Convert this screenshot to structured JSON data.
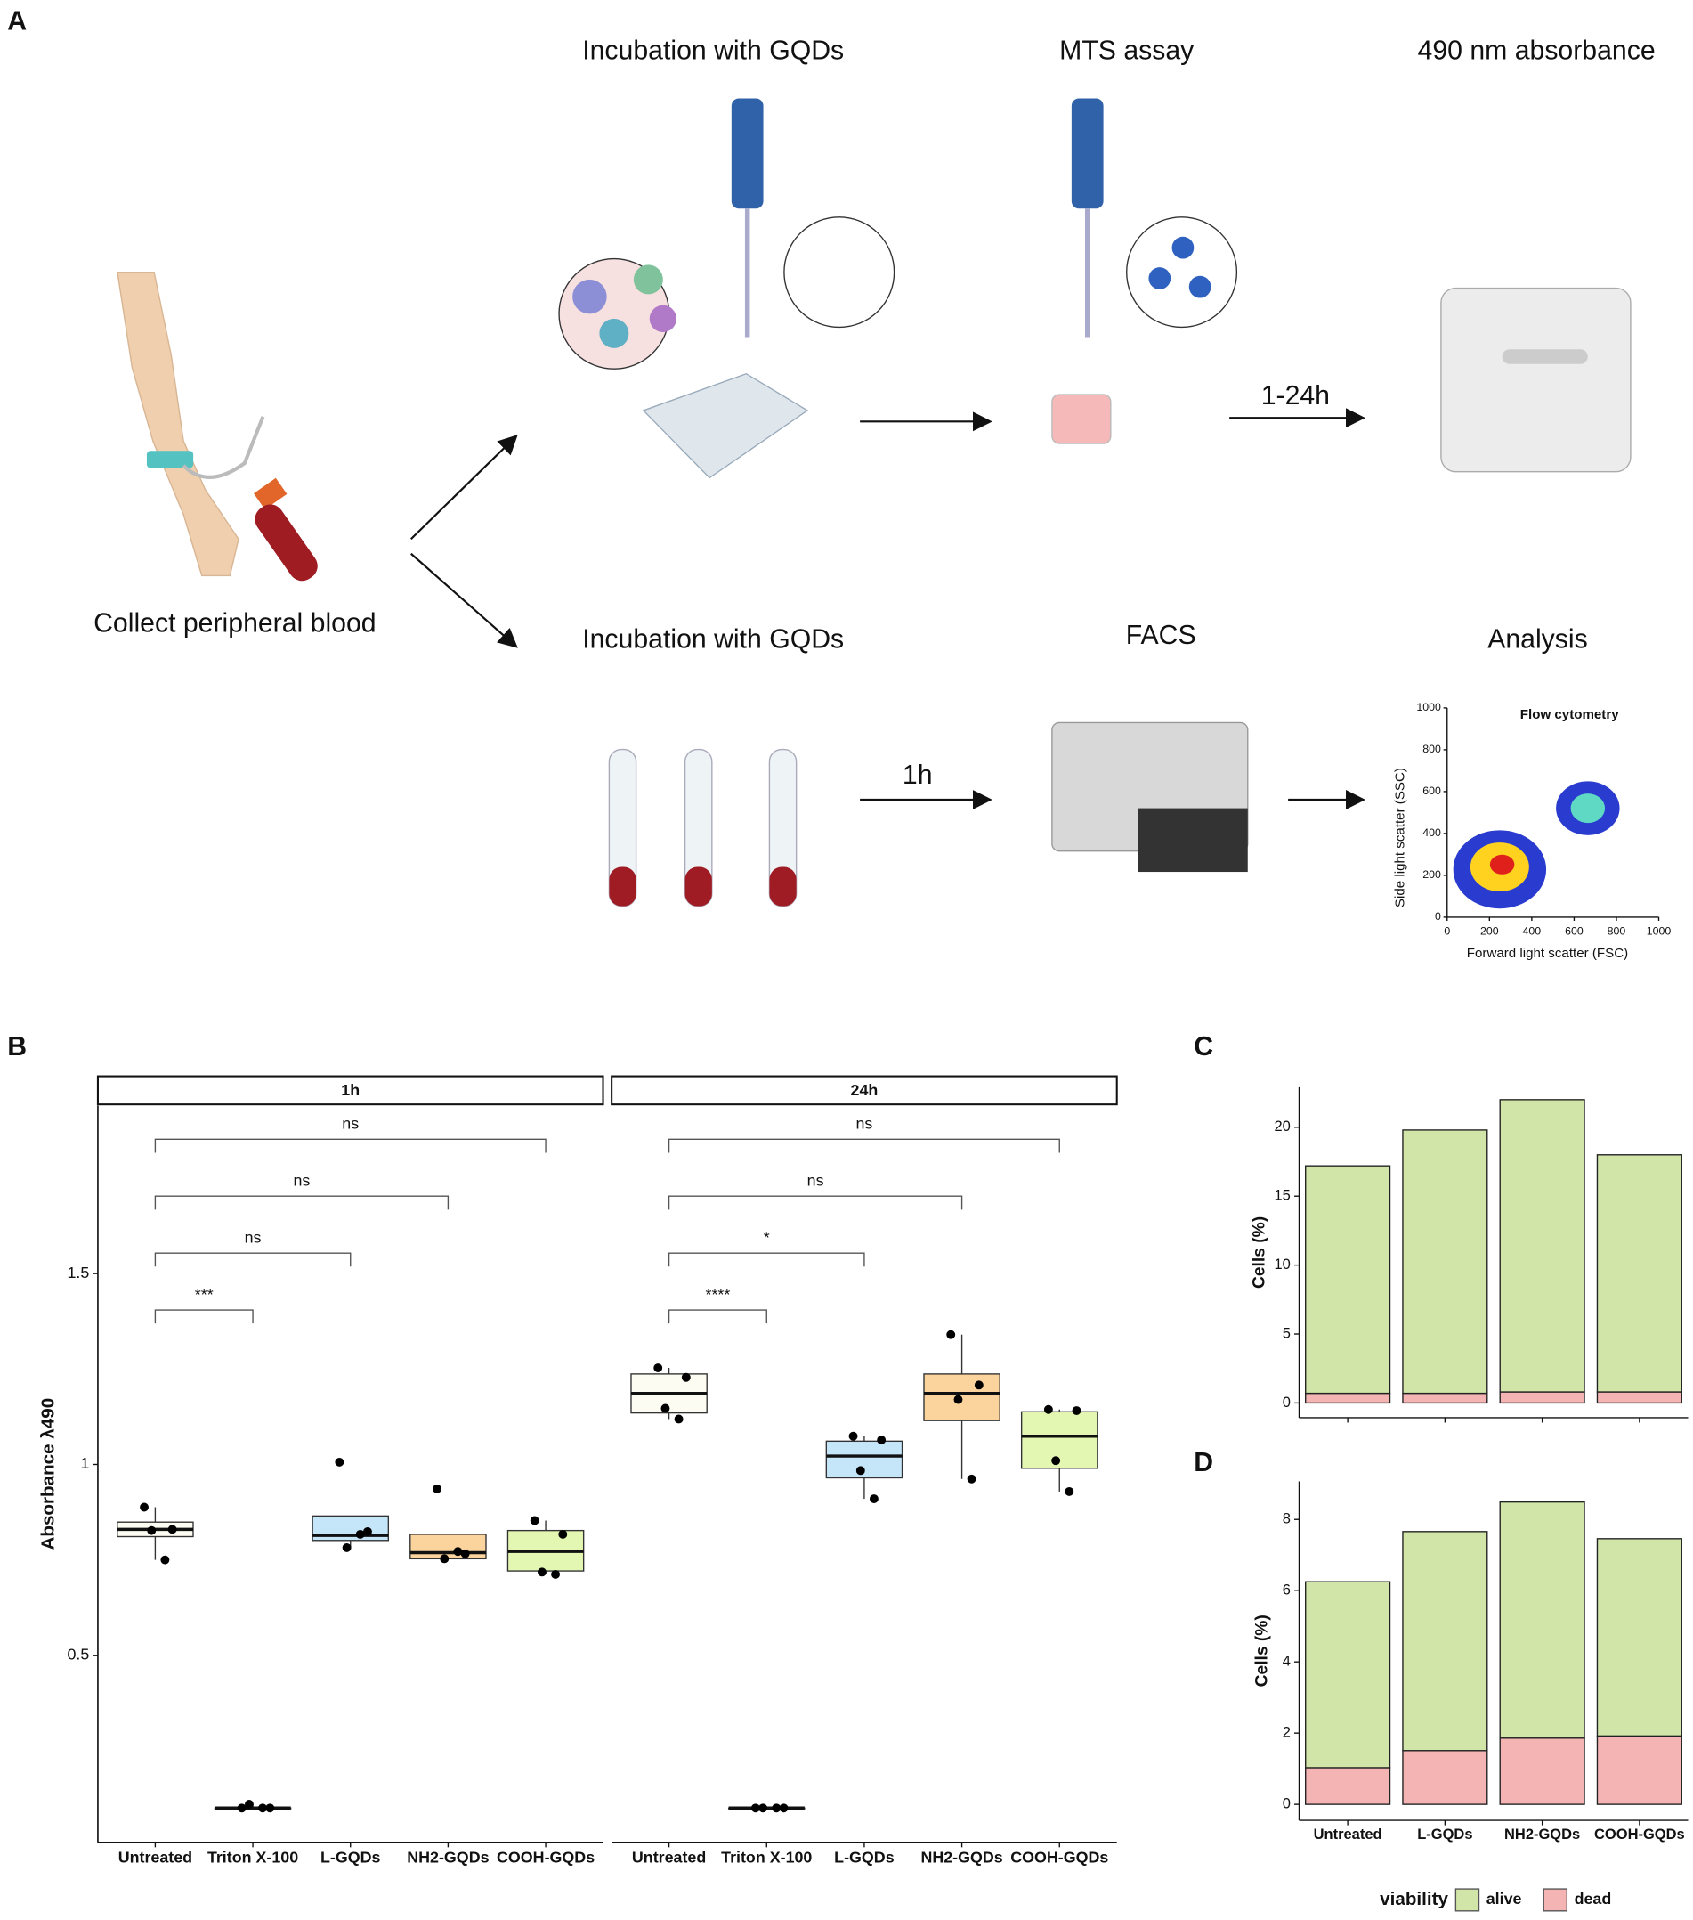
{
  "panel_labels": [
    "A",
    "B",
    "C",
    "D"
  ],
  "diagram": {
    "source": "Collect peripheral blood",
    "top_steps": [
      "Incubation with GQDs",
      "MTS assay",
      "490 nm absorbance"
    ],
    "bottom_steps": [
      "Incubation with GQDs",
      "FACS",
      "Analysis"
    ],
    "top_arrow_label": "1-24h",
    "bottom_arrow_label": "1h",
    "inset": {
      "title": "Flow cytometry",
      "xlabel": "Forward light scatter (FSC)",
      "ylabel": "Side light scatter (SSC)",
      "xlim": [
        0,
        1000
      ],
      "ylim": [
        0,
        1000
      ],
      "xticks": [
        0,
        200,
        400,
        600,
        800,
        1000
      ],
      "yticks": [
        0,
        200,
        400,
        600,
        800,
        1000
      ]
    }
  },
  "chart_data": [
    {
      "type": "box",
      "ylabel": "Absorbance λ490",
      "ylim": [
        0.01,
        1.94
      ],
      "yticks": [
        0.5,
        1.0,
        1.5
      ],
      "categories": [
        "Untreated",
        "Triton X-100",
        "L-GQDs",
        "NH2-GQDs",
        "COOH-GQDs"
      ],
      "colors": [
        "#fdfcf3",
        "#ffffff",
        "#c5e5f8",
        "#fbd39d",
        "#e3f7b2"
      ],
      "facets": [
        {
          "label": "1h",
          "boxes": [
            {
              "lower": 0.75,
              "q1": 0.811,
              "median": 0.83,
              "q3": 0.849,
              "upper": 0.888,
              "points": [
                0.888,
                0.83,
                0.827,
                0.75
              ]
            },
            {
              "lower": 0.1,
              "q1": 0.1,
              "median": 0.1,
              "q3": 0.1,
              "upper": 0.11,
              "points": [
                0.1,
                0.1,
                0.11,
                0.1
              ]
            },
            {
              "lower": 0.782,
              "q1": 0.801,
              "median": 0.814,
              "q3": 0.865,
              "upper": 0.865,
              "points": [
                1.006,
                0.824,
                0.782,
                0.817
              ]
            },
            {
              "lower": 0.753,
              "q1": 0.753,
              "median": 0.769,
              "q3": 0.817,
              "upper": 0.817,
              "points": [
                0.936,
                0.766,
                0.753,
                0.772
              ]
            },
            {
              "lower": 0.712,
              "q1": 0.721,
              "median": 0.772,
              "q3": 0.827,
              "upper": 0.853,
              "points": [
                0.853,
                0.817,
                0.718,
                0.712
              ]
            }
          ],
          "comparisons": [
            {
              "groups": [
                "Untreated",
                "Triton X-100"
              ],
              "label": "***"
            },
            {
              "groups": [
                "Untreated",
                "L-GQDs"
              ],
              "label": "ns"
            },
            {
              "groups": [
                "Untreated",
                "NH2-GQDs"
              ],
              "label": "ns"
            },
            {
              "groups": [
                "Untreated",
                "COOH-GQDs"
              ],
              "label": "ns"
            }
          ]
        },
        {
          "label": "24h",
          "boxes": [
            {
              "lower": 1.119,
              "q1": 1.135,
              "median": 1.186,
              "q3": 1.237,
              "upper": 1.253,
              "points": [
                1.253,
                1.228,
                1.147,
                1.119
              ]
            },
            {
              "lower": 0.1,
              "q1": 0.1,
              "median": 0.1,
              "q3": 0.1,
              "upper": 0.1,
              "points": [
                0.1,
                0.1,
                0.1,
                0.1
              ]
            },
            {
              "lower": 0.91,
              "q1": 0.965,
              "median": 1.022,
              "q3": 1.061,
              "upper": 1.074,
              "points": [
                1.074,
                1.064,
                0.984,
                0.91
              ]
            },
            {
              "lower": 0.962,
              "q1": 1.115,
              "median": 1.186,
              "q3": 1.237,
              "upper": 1.34,
              "points": [
                1.34,
                1.208,
                1.17,
                0.962
              ]
            },
            {
              "lower": 0.929,
              "q1": 0.99,
              "median": 1.074,
              "q3": 1.138,
              "upper": 1.144,
              "points": [
                1.144,
                1.141,
                1.01,
                0.929
              ]
            }
          ],
          "comparisons": [
            {
              "groups": [
                "Untreated",
                "Triton X-100"
              ],
              "label": "****"
            },
            {
              "groups": [
                "Untreated",
                "L-GQDs"
              ],
              "label": "*"
            },
            {
              "groups": [
                "Untreated",
                "NH2-GQDs"
              ],
              "label": "ns"
            },
            {
              "groups": [
                "Untreated",
                "COOH-GQDs"
              ],
              "label": "ns"
            }
          ]
        }
      ]
    },
    {
      "type": "stacked_bar",
      "ylabel": "Cells (%)",
      "ylim": [
        -1.07,
        22.9
      ],
      "yticks": [
        0,
        5,
        10,
        15,
        20
      ],
      "categories": [
        null,
        null,
        null,
        null
      ],
      "series": [
        {
          "name": "alive",
          "color": "#d1e5a9",
          "values": [
            16.5,
            19.1,
            21.2,
            17.2
          ]
        },
        {
          "name": "dead",
          "color": "#f4b4b4",
          "values": [
            0.7,
            0.7,
            0.8,
            0.8
          ]
        }
      ]
    },
    {
      "type": "stacked_bar",
      "ylabel": "Cells (%)",
      "ylim": [
        -0.45,
        9.07
      ],
      "yticks": [
        0,
        2,
        4,
        6,
        8
      ],
      "categories": [
        "Untreated",
        "L-GQDs",
        "NH2-GQDs",
        "COOH-GQDs"
      ],
      "legend_title": "viability",
      "series": [
        {
          "name": "alive",
          "color": "#d1e5a9",
          "values": [
            5.22,
            6.15,
            6.63,
            5.54
          ]
        },
        {
          "name": "dead",
          "color": "#f4b4b4",
          "values": [
            1.03,
            1.51,
            1.86,
            1.92
          ]
        }
      ]
    }
  ]
}
